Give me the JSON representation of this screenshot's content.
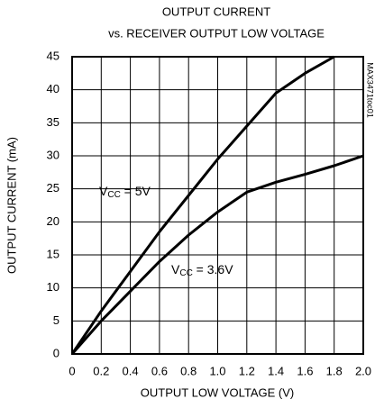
{
  "chart_data": {
    "type": "line",
    "title": [
      "OUTPUT CURRENT",
      "vs. RECEIVER OUTPUT LOW VOLTAGE"
    ],
    "x_label": "OUTPUT LOW VOLTAGE (V)",
    "y_label": "OUTPUT CURRENT (mA)",
    "side_code": "MAX3471toc01",
    "xlim": [
      0,
      2.0
    ],
    "xticks": [
      0,
      0.2,
      0.4,
      0.6,
      0.8,
      {
        "value": 1.0,
        "label": "1.0"
      },
      1.2,
      1.4,
      1.6,
      1.8,
      {
        "value": 2.0,
        "label": "2.0"
      }
    ],
    "ylim": [
      0,
      45
    ],
    "yticks": [
      0,
      5,
      10,
      15,
      20,
      25,
      30,
      35,
      40,
      45
    ],
    "grid": true,
    "color": "#000000",
    "series": [
      {
        "label": [
          "V",
          "CC",
          " = 5V"
        ],
        "x": [
          0,
          0.2,
          0.4,
          0.6,
          0.8,
          1.0,
          1.2,
          1.4,
          1.6,
          1.8
        ],
        "values": [
          0,
          6.5,
          12.5,
          18.5,
          24,
          29.5,
          34.5,
          39.5,
          42.5,
          45
        ]
      },
      {
        "label": [
          "V",
          "CC",
          " = 3.6V"
        ],
        "x": [
          0,
          0.2,
          0.4,
          0.6,
          0.8,
          1.0,
          1.2,
          1.4,
          1.6,
          1.8,
          2.0
        ],
        "values": [
          0,
          5,
          9.5,
          14,
          18,
          21.5,
          24.5,
          26,
          27.2,
          28.5,
          30
        ]
      }
    ]
  }
}
